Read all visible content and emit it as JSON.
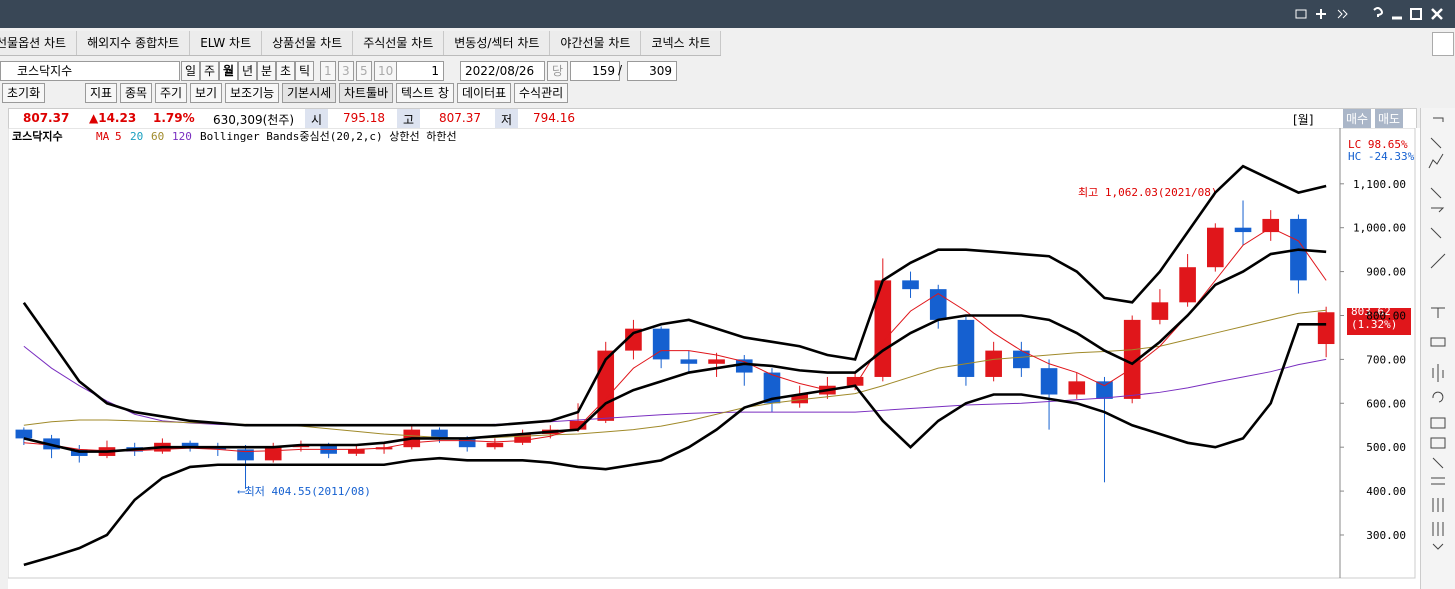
{
  "tabs": [
    "선물옵션 차트",
    "해외지수 종합차트",
    "ELW 차트",
    "상품선물 차트",
    "주식선물 차트",
    "변동성/섹터 차트",
    "야간선물 차트",
    "코넥스 차트"
  ],
  "toolbar": {
    "symbol": "코스닥지수",
    "periods": [
      "일",
      "주",
      "월",
      "년",
      "분",
      "초",
      "틱"
    ],
    "steps": [
      "1",
      "3",
      "5",
      "10"
    ],
    "count": "1",
    "date": "2022/08/26",
    "today": "당",
    "position": "159",
    "separator": "/",
    "total": "309",
    "buttons": [
      "초기화",
      "지표",
      "종목",
      "주기",
      "보기",
      "보조기능",
      "기본시세",
      "차트툴바",
      "텍스트 창",
      "데이터표",
      "수식관리"
    ]
  },
  "quote": {
    "price": "807.37",
    "change": "▲14.23",
    "rate": "1.79%",
    "volume": "630,309(천주)",
    "open_label": "시",
    "open": "795.18",
    "high_label": "고",
    "high": "807.37",
    "low_label": "저",
    "low": "794.16",
    "period": "[월]",
    "buy": "매수",
    "sell": "매도"
  },
  "chart_data": {
    "type": "candlestick",
    "legend_symbol": "코스닥지수",
    "ma_label": "MA",
    "ma_periods": [
      "5",
      "20",
      "60",
      "120"
    ],
    "bb_label": "Bollinger Bands중심선(20,2,c) 상한선 하한선",
    "up_color": "#e0161b",
    "down_color": "#1560d0",
    "ylim": [
      202,
      1177
    ],
    "yticks": [
      {
        "value": 300,
        "label": "300.00"
      },
      {
        "value": 400,
        "label": "400.00"
      },
      {
        "value": 500,
        "label": "500.00"
      },
      {
        "value": 600,
        "label": "600.00"
      },
      {
        "value": 700,
        "label": "700.00"
      },
      {
        "value": 800,
        "label": "800.00"
      },
      {
        "value": 900,
        "label": "900.00"
      },
      {
        "value": 1000,
        "label": "1,000.00"
      },
      {
        "value": 1100,
        "label": "1,100.00"
      }
    ],
    "candles": [
      [
        540,
        545,
        505,
        520
      ],
      [
        520,
        528,
        475,
        495
      ],
      [
        495,
        505,
        465,
        480
      ],
      [
        480,
        515,
        475,
        500
      ],
      [
        500,
        510,
        480,
        490
      ],
      [
        490,
        520,
        485,
        510
      ],
      [
        510,
        515,
        490,
        500
      ],
      [
        500,
        510,
        480,
        495
      ],
      [
        495,
        505,
        405,
        470
      ],
      [
        470,
        510,
        465,
        500
      ],
      [
        500,
        515,
        490,
        505
      ],
      [
        505,
        510,
        475,
        485
      ],
      [
        485,
        505,
        480,
        495
      ],
      [
        495,
        510,
        485,
        500
      ],
      [
        500,
        550,
        495,
        540
      ],
      [
        540,
        545,
        510,
        520
      ],
      [
        520,
        525,
        490,
        500
      ],
      [
        500,
        520,
        495,
        510
      ],
      [
        510,
        540,
        505,
        530
      ],
      [
        530,
        550,
        520,
        540
      ],
      [
        540,
        600,
        535,
        560
      ],
      [
        560,
        740,
        555,
        720
      ],
      [
        720,
        790,
        700,
        770
      ],
      [
        770,
        775,
        680,
        700
      ],
      [
        700,
        720,
        670,
        690
      ],
      [
        690,
        715,
        660,
        700
      ],
      [
        700,
        710,
        640,
        670
      ],
      [
        670,
        680,
        580,
        600
      ],
      [
        600,
        640,
        590,
        620
      ],
      [
        620,
        660,
        610,
        640
      ],
      [
        640,
        670,
        630,
        660
      ],
      [
        660,
        930,
        650,
        880
      ],
      [
        880,
        900,
        840,
        860
      ],
      [
        860,
        870,
        770,
        790
      ],
      [
        790,
        800,
        640,
        660
      ],
      [
        660,
        740,
        650,
        720
      ],
      [
        720,
        740,
        660,
        680
      ],
      [
        680,
        700,
        540,
        620
      ],
      [
        620,
        670,
        610,
        650
      ],
      [
        650,
        660,
        420,
        610
      ],
      [
        610,
        800,
        600,
        790
      ],
      [
        790,
        860,
        780,
        830
      ],
      [
        830,
        940,
        820,
        910
      ],
      [
        910,
        1010,
        900,
        1000
      ],
      [
        1000,
        1062,
        960,
        990
      ],
      [
        990,
        1040,
        970,
        1020
      ],
      [
        1020,
        1030,
        850,
        880
      ],
      [
        735,
        820,
        705,
        807.37
      ]
    ],
    "series": [
      {
        "color": "#7a2fc0",
        "values": [
          730,
          680,
          640,
          605,
          575,
          560,
          555,
          552,
          550,
          550,
          550,
          550,
          550,
          550,
          550,
          550,
          550,
          552,
          555,
          558,
          562,
          566,
          570,
          574,
          577,
          579,
          580,
          580,
          580,
          580,
          580,
          584,
          588,
          592,
          596,
          598,
          600,
          604,
          608,
          612,
          618,
          625,
          635,
          648,
          660,
          672,
          688,
          700
        ]
      },
      {
        "color": "#a08a2a",
        "values": [
          550,
          558,
          562,
          562,
          560,
          558,
          556,
          554,
          552,
          550,
          548,
          542,
          536,
          530,
          526,
          522,
          520,
          522,
          525,
          528,
          530,
          535,
          540,
          548,
          560,
          575,
          590,
          600,
          608,
          615,
          622,
          640,
          660,
          680,
          690,
          700,
          705,
          710,
          715,
          718,
          722,
          730,
          745,
          760,
          775,
          790,
          805,
          812
        ]
      },
      {
        "color": "#e0161b",
        "values": [
          510,
          505,
          495,
          492,
          492,
          495,
          498,
          495,
          490,
          492,
          495,
          495,
          495,
          498,
          510,
          515,
          515,
          512,
          515,
          525,
          545,
          610,
          680,
          720,
          720,
          710,
          695,
          665,
          645,
          630,
          640,
          740,
          810,
          850,
          810,
          760,
          720,
          690,
          670,
          640,
          680,
          730,
          800,
          880,
          960,
          1000,
          970,
          880
        ]
      },
      {
        "color": "#000000",
        "values": [
          829,
          740,
          650,
          600,
          580,
          570,
          560,
          555,
          550,
          550,
          550,
          550,
          550,
          550,
          550,
          550,
          550,
          550,
          555,
          560,
          580,
          700,
          760,
          780,
          790,
          770,
          750,
          740,
          730,
          710,
          700,
          880,
          920,
          950,
          950,
          945,
          940,
          935,
          900,
          840,
          830,
          900,
          990,
          1080,
          1140,
          1110,
          1080,
          1095
        ]
      },
      {
        "color": "#000000",
        "values": [
          520,
          505,
          490,
          490,
          495,
          500,
          500,
          500,
          500,
          500,
          505,
          505,
          505,
          510,
          520,
          520,
          520,
          525,
          530,
          535,
          540,
          600,
          630,
          650,
          670,
          680,
          690,
          685,
          675,
          670,
          670,
          720,
          760,
          790,
          800,
          800,
          800,
          790,
          760,
          720,
          690,
          740,
          800,
          870,
          900,
          940,
          950,
          945
        ]
      },
      {
        "color": "#000000",
        "values": [
          232,
          250,
          270,
          300,
          380,
          430,
          455,
          460,
          460,
          460,
          460,
          460,
          460,
          460,
          470,
          475,
          470,
          470,
          470,
          465,
          455,
          450,
          460,
          470,
          500,
          540,
          590,
          610,
          620,
          630,
          640,
          560,
          500,
          560,
          600,
          620,
          620,
          610,
          600,
          580,
          550,
          530,
          510,
          500,
          520,
          600,
          780,
          780
        ]
      }
    ],
    "annotations": [
      "최고 1,062.03(2021/08)",
      "⟵최저 404.55(2011/08)"
    ],
    "price_tag": "803.62",
    "price_tag_rate": "(1.32%)",
    "lc": "LC  98.65%",
    "hc": "HC -24.33%"
  }
}
